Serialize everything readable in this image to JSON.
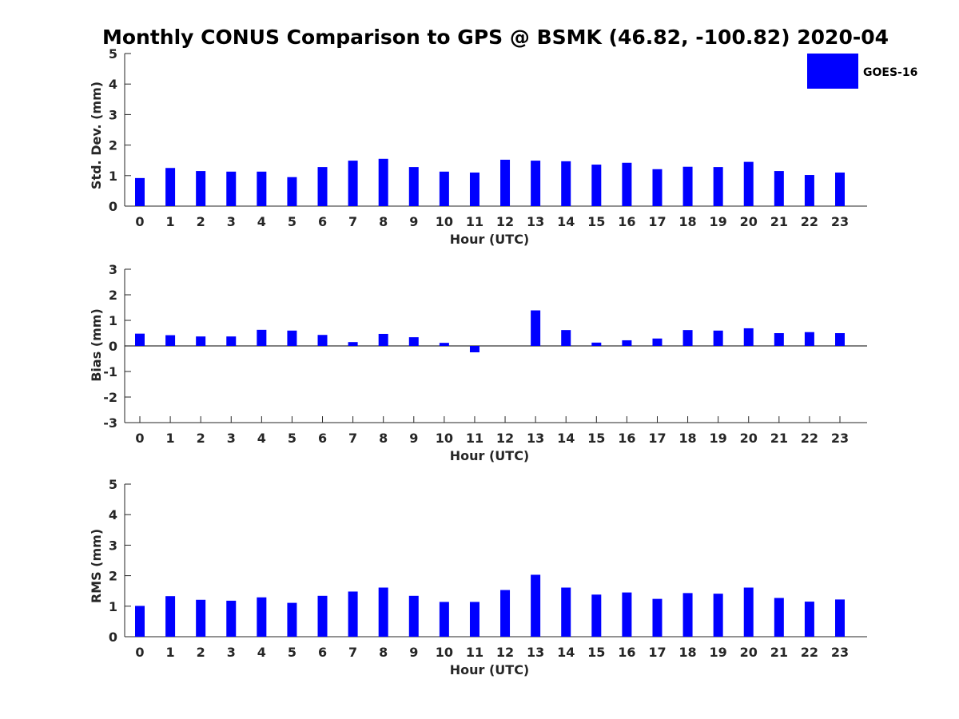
{
  "chart_data": {
    "title": "Monthly CONUS Comparison to GPS @ BSMK (46.82, -100.82) 2020-04",
    "legend": {
      "entries": [
        "GOES-16"
      ],
      "placement": "top-right",
      "color": "#0000ff"
    },
    "panels": [
      {
        "type": "bar",
        "ylabel": "Std. Dev. (mm)",
        "xlabel": "Hour (UTC)",
        "ylim": [
          0,
          5
        ],
        "yticks": [
          0,
          1,
          2,
          3,
          4,
          5
        ],
        "categories": [
          "0",
          "1",
          "2",
          "3",
          "4",
          "5",
          "6",
          "7",
          "8",
          "9",
          "10",
          "11",
          "12",
          "13",
          "14",
          "15",
          "16",
          "17",
          "18",
          "19",
          "20",
          "21",
          "22",
          "23"
        ],
        "series": [
          {
            "name": "GOES-16",
            "color": "#0000ff",
            "values": [
              0.92,
              1.25,
              1.15,
              1.13,
              1.13,
              0.95,
              1.28,
              1.49,
              1.55,
              1.28,
              1.13,
              1.1,
              1.52,
              1.49,
              1.47,
              1.36,
              1.42,
              1.21,
              1.29,
              1.28,
              1.45,
              1.15,
              1.02,
              1.1
            ]
          }
        ]
      },
      {
        "type": "bar",
        "ylabel": "Bias (mm)",
        "xlabel": "Hour (UTC)",
        "ylim": [
          -3,
          3
        ],
        "yticks": [
          -3,
          -2,
          -1,
          0,
          1,
          2,
          3
        ],
        "categories": [
          "0",
          "1",
          "2",
          "3",
          "4",
          "5",
          "6",
          "7",
          "8",
          "9",
          "10",
          "11",
          "12",
          "13",
          "14",
          "15",
          "16",
          "17",
          "18",
          "19",
          "20",
          "21",
          "22",
          "23"
        ],
        "series": [
          {
            "name": "GOES-16",
            "color": "#0000ff",
            "values": [
              0.48,
              0.42,
              0.37,
              0.37,
              0.63,
              0.6,
              0.43,
              0.15,
              0.47,
              0.34,
              0.12,
              -0.25,
              0,
              1.39,
              0.62,
              0.13,
              0.22,
              0.29,
              0.62,
              0.6,
              0.69,
              0.5,
              0.54,
              0.5
            ]
          }
        ]
      },
      {
        "type": "bar",
        "ylabel": "RMS (mm)",
        "xlabel": "Hour (UTC)",
        "ylim": [
          0,
          5
        ],
        "yticks": [
          0,
          1,
          2,
          3,
          4,
          5
        ],
        "categories": [
          "0",
          "1",
          "2",
          "3",
          "4",
          "5",
          "6",
          "7",
          "8",
          "9",
          "10",
          "11",
          "12",
          "13",
          "14",
          "15",
          "16",
          "17",
          "18",
          "19",
          "20",
          "21",
          "22",
          "23"
        ],
        "series": [
          {
            "name": "GOES-16",
            "color": "#0000ff",
            "values": [
              1.01,
              1.33,
              1.21,
              1.18,
              1.29,
              1.11,
              1.34,
              1.48,
              1.61,
              1.34,
              1.14,
              1.14,
              1.53,
              2.03,
              1.61,
              1.38,
              1.45,
              1.24,
              1.43,
              1.41,
              1.61,
              1.27,
              1.15,
              1.22
            ]
          }
        ]
      }
    ]
  }
}
